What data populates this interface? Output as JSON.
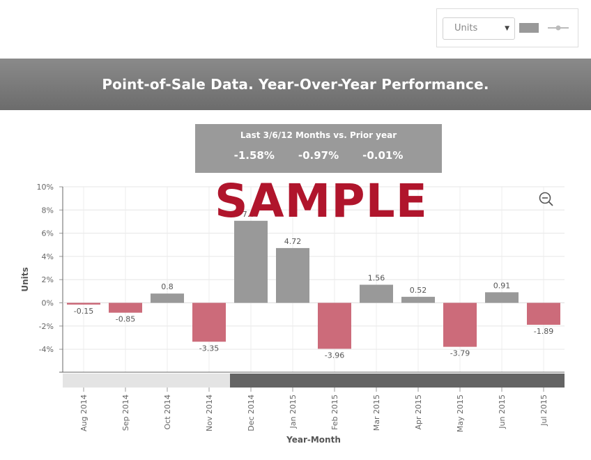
{
  "controls": {
    "measure_select": "Units",
    "bar_toggle_icon": "bar-chart-toggle-icon",
    "line_toggle_icon": "line-chart-toggle-icon"
  },
  "header": {
    "title": "Point-of-Sale Data. Year-Over-Year Performance."
  },
  "summary": {
    "title": "Last 3/6/12 Months vs. Prior year",
    "values": [
      "-1.58%",
      "-0.97%",
      "-0.01%"
    ]
  },
  "watermark": "SAMPLE",
  "zoom_icon": "zoom-out-icon",
  "colors": {
    "positive": "#999999",
    "negative": "#cc6b7a",
    "header": "#7a7a7a",
    "watermark": "#b0152c"
  },
  "chart_data": {
    "type": "bar",
    "title": "",
    "xlabel": "Year-Month",
    "ylabel": "Units",
    "ylim": [
      -6,
      10
    ],
    "yticks": [
      "-4%",
      "-2%",
      "0%",
      "2%",
      "4%",
      "6%",
      "8%",
      "10%"
    ],
    "categories": [
      "Aug 2014",
      "Sep 2014",
      "Oct 2014",
      "Nov 2014",
      "Dec 2014",
      "Jan 2015",
      "Feb 2015",
      "Mar 2015",
      "Apr 2015",
      "May 2015",
      "Jun 2015",
      "Jul 2015"
    ],
    "values": [
      -0.15,
      -0.85,
      0.8,
      -3.35,
      7.07,
      4.72,
      -3.96,
      1.56,
      0.52,
      -3.79,
      0.91,
      -1.89
    ],
    "labels": [
      "-0.15",
      "-0.85",
      "0.8",
      "-3.35",
      "7.07",
      "4.72",
      "-3.96",
      "1.56",
      "0.52",
      "-3.79",
      "0.91",
      "-1.89"
    ],
    "grid": true
  }
}
